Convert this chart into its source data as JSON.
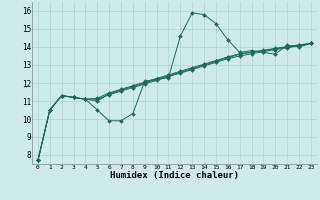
{
  "xlabel": "Humidex (Indice chaleur)",
  "bg_color": "#ceeaea",
  "grid_color": "#afd4d4",
  "line_color": "#1a6b5a",
  "marker_color": "#1a6b5a",
  "xlim": [
    -0.5,
    23.5
  ],
  "ylim": [
    7.5,
    16.5
  ],
  "xticks": [
    0,
    1,
    2,
    3,
    4,
    5,
    6,
    7,
    8,
    9,
    10,
    11,
    12,
    13,
    14,
    15,
    16,
    17,
    18,
    19,
    20,
    21,
    22,
    23
  ],
  "yticks": [
    8,
    9,
    10,
    11,
    12,
    13,
    14,
    15,
    16
  ],
  "series": [
    [
      7.7,
      10.5,
      11.3,
      11.2,
      11.1,
      10.5,
      9.9,
      9.9,
      10.3,
      12.1,
      12.2,
      12.3,
      14.6,
      15.9,
      15.8,
      15.3,
      14.4,
      13.7,
      13.8,
      13.7,
      13.6,
      14.1,
      14.0,
      14.2
    ],
    [
      7.7,
      10.5,
      11.3,
      11.2,
      11.1,
      11.0,
      11.4,
      11.6,
      11.8,
      12.0,
      12.2,
      12.4,
      12.6,
      12.8,
      13.0,
      13.2,
      13.4,
      13.6,
      13.7,
      13.8,
      13.9,
      14.0,
      14.1,
      14.2
    ],
    [
      7.7,
      10.5,
      11.3,
      11.2,
      11.1,
      11.1,
      11.35,
      11.55,
      11.75,
      11.95,
      12.15,
      12.35,
      12.55,
      12.75,
      12.95,
      13.15,
      13.35,
      13.5,
      13.62,
      13.74,
      13.86,
      13.95,
      14.07,
      14.2
    ],
    [
      7.7,
      10.5,
      11.3,
      11.2,
      11.1,
      11.15,
      11.45,
      11.65,
      11.85,
      12.05,
      12.25,
      12.45,
      12.65,
      12.85,
      13.05,
      13.25,
      13.45,
      13.62,
      13.72,
      13.82,
      13.92,
      14.02,
      14.12,
      14.2
    ]
  ]
}
